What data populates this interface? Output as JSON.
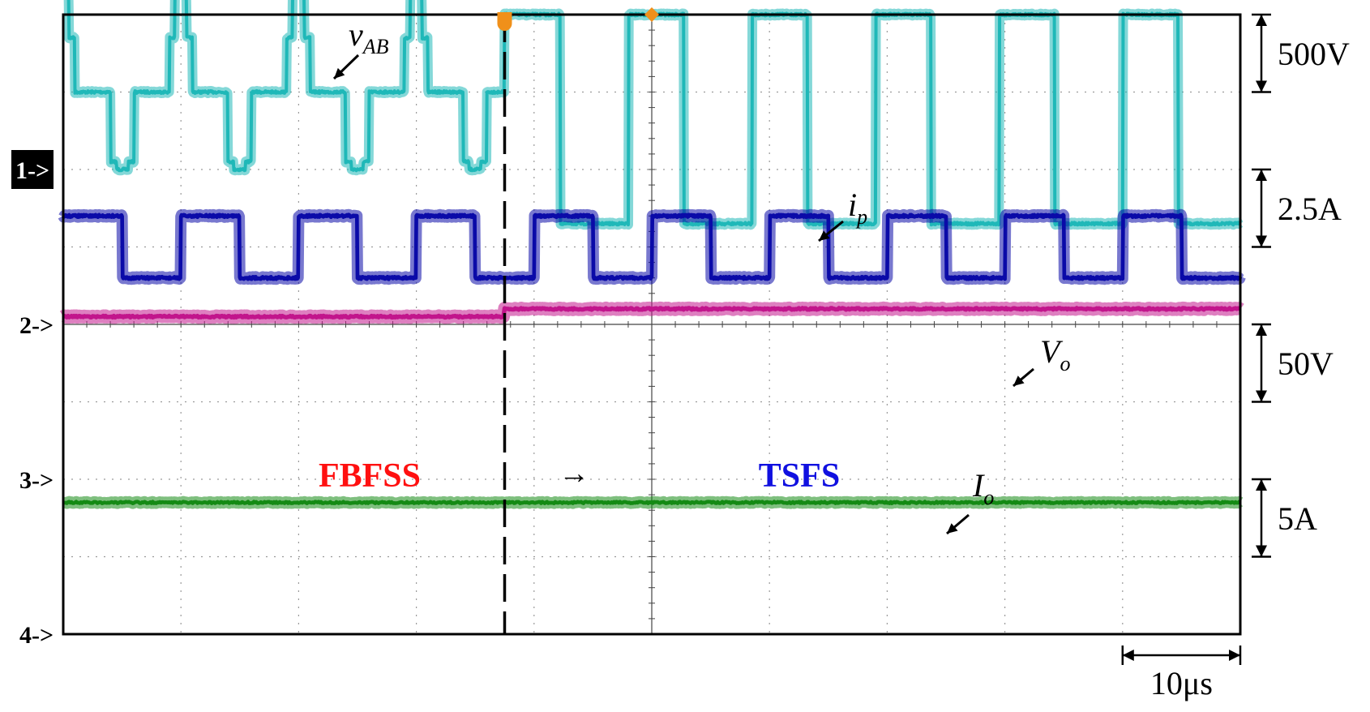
{
  "chart_data": {
    "type": "line",
    "title": "",
    "xlabel": "",
    "ylabel": "",
    "x_unit": "µs",
    "x_range": [
      0,
      100
    ],
    "grid": true,
    "grid_divisions": {
      "horizontal": 10,
      "vertical": 8
    },
    "time_scale": {
      "label": "10μs",
      "value": 10
    },
    "mode_switch_time": 37.5,
    "transition_arrow": "→",
    "channels": [
      {
        "marker": "1->",
        "variable": "v",
        "subscript": "AB",
        "scale": "500V",
        "color": "#1fb8b8",
        "markerColor": "#ffffff",
        "markerBg": "#000000"
      },
      {
        "marker": "2->",
        "variable": "i",
        "subscript": "p",
        "scale": "2.5A",
        "color": "#0a0aa8"
      },
      {
        "marker": "3->",
        "variable": "V",
        "subscript": "o",
        "scale": "50V",
        "color": "#c2158c"
      },
      {
        "marker": "4->",
        "variable": "I",
        "subscript": "o",
        "scale": "5A",
        "color": "#148a14"
      }
    ],
    "mode_labels": [
      {
        "text": "FBFSS",
        "color": "#ff1010"
      },
      {
        "text": "TSFS",
        "color": "#1010e0"
      }
    ],
    "waveforms": {
      "v_AB": {
        "before": {
          "period_us": 10,
          "levels_div": [
            2.3,
            1.7,
            1.0,
            0.1,
            0.0,
            0.1,
            1.0,
            1.7
          ],
          "level_fractions": [
            0,
            0.1,
            0.15,
            0.45,
            0.5,
            0.6,
            0.65,
            0.95
          ]
        },
        "after": {
          "period_us": 10.5,
          "high_div": 2.9,
          "low_div": 0.2,
          "duty": 0.45
        }
      },
      "i_p": {
        "period_us": 10,
        "high_div": 2.1,
        "low_div": 1.3,
        "duty": 0.5
      },
      "V_o": {
        "level_div": 4.1,
        "offset_after_div": 0.1
      },
      "I_o": {
        "level_div": 1.7
      }
    }
  }
}
